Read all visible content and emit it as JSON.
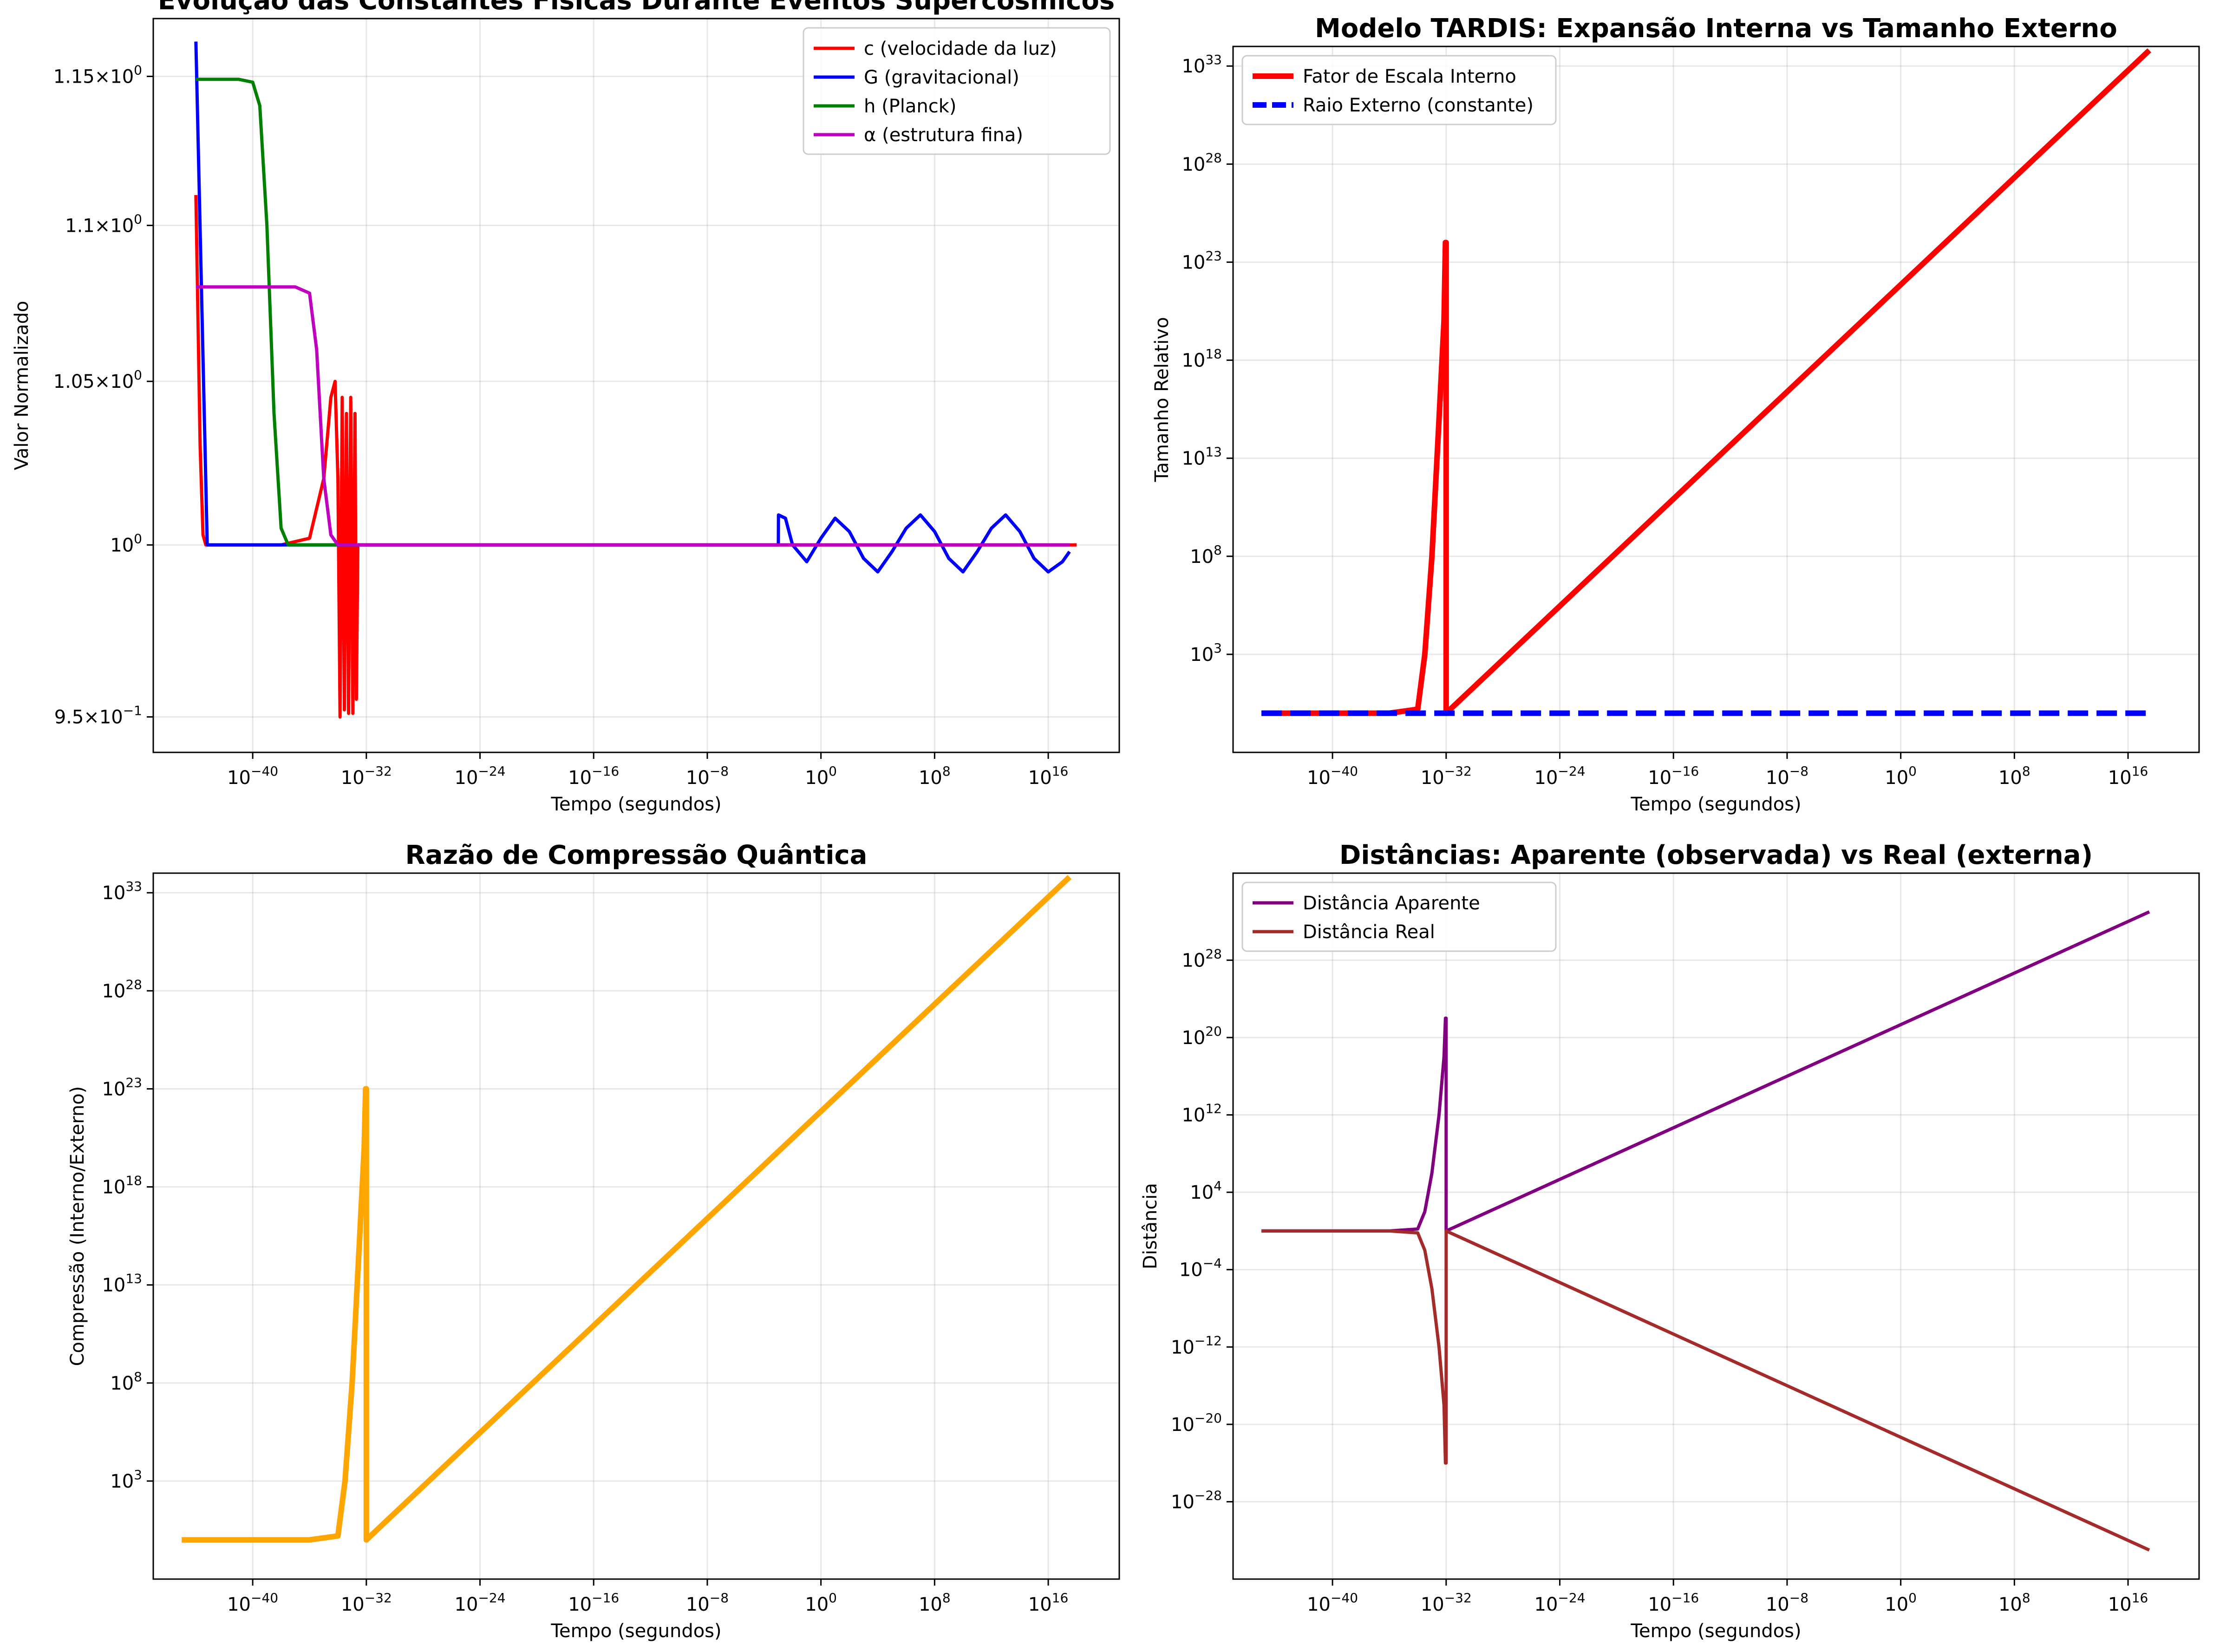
{
  "chart_data": [
    {
      "type": "line",
      "title": "Evolução das Constantes Físicas Durante Eventos Supercosmicos",
      "xlabel": "Tempo (segundos)",
      "ylabel": "Valor Normalizado",
      "xscale": "log",
      "yscale": "log",
      "xlim_exp": [
        -47,
        21
      ],
      "ylim": [
        0.94,
        1.17
      ],
      "xticks": [
        "10^{-40}",
        "10^{-32}",
        "10^{-24}",
        "10^{-16}",
        "10^{-8}",
        "10^{0}",
        "10^{8}",
        "10^{16}"
      ],
      "yticks": [
        {
          "value": 0.95,
          "mant": "9.5",
          "exp": "−1"
        },
        {
          "value": 1.0,
          "mant": "",
          "exp": "0"
        },
        {
          "value": 1.05,
          "mant": "1.05",
          "exp": "0"
        },
        {
          "value": 1.1,
          "mant": "1.1",
          "exp": "0"
        },
        {
          "value": 1.15,
          "mant": "1.15",
          "exp": "0"
        }
      ],
      "grid": true,
      "legend": "top-right",
      "series": [
        {
          "name": "c (velocidade da luz)",
          "color": "#ff0000",
          "lw": 7,
          "points": [
            [
              -44,
              1.11
            ],
            [
              -43.7,
              1.03
            ],
            [
              -43.5,
              1.003
            ],
            [
              -43.3,
              1.0
            ],
            [
              -38,
              1.0
            ],
            [
              -36,
              1.002
            ],
            [
              -35,
              1.02
            ],
            [
              -34.5,
              1.045
            ],
            [
              -34.2,
              1.05
            ],
            [
              -34,
              1.02
            ],
            [
              -33.85,
              0.95
            ],
            [
              -33.7,
              1.045
            ],
            [
              -33.55,
              0.952
            ],
            [
              -33.4,
              1.04
            ],
            [
              -33.25,
              0.951
            ],
            [
              -33.1,
              1.045
            ],
            [
              -32.95,
              0.951
            ],
            [
              -32.8,
              1.04
            ],
            [
              -32.7,
              0.955
            ],
            [
              -32.6,
              1.0
            ],
            [
              -31,
              1.0
            ],
            [
              18,
              1.0
            ]
          ]
        },
        {
          "name": "G (gravitacional)",
          "color": "#0000ff",
          "lw": 7,
          "points": [
            [
              -44,
              1.162
            ],
            [
              -43.2,
              1.0
            ],
            [
              -3,
              1.0
            ],
            [
              -2.99,
              1.009
            ],
            [
              -2.5,
              1.008
            ],
            [
              -2,
              1.0
            ],
            [
              -1,
              0.995
            ],
            [
              0,
              1.002
            ],
            [
              1,
              1.008
            ],
            [
              2,
              1.004
            ],
            [
              3,
              0.996
            ],
            [
              4,
              0.992
            ],
            [
              5,
              0.998
            ],
            [
              6,
              1.005
            ],
            [
              7,
              1.009
            ],
            [
              8,
              1.004
            ],
            [
              9,
              0.996
            ],
            [
              10,
              0.992
            ],
            [
              11,
              0.998
            ],
            [
              12,
              1.005
            ],
            [
              13,
              1.009
            ],
            [
              14,
              1.004
            ],
            [
              15,
              0.996
            ],
            [
              16,
              0.992
            ],
            [
              17,
              0.995
            ],
            [
              17.5,
              0.998
            ]
          ]
        },
        {
          "name": "h (Planck)",
          "color": "#008000",
          "lw": 7,
          "points": [
            [
              -44,
              1.149
            ],
            [
              -41,
              1.149
            ],
            [
              -40,
              1.148
            ],
            [
              -39.5,
              1.14
            ],
            [
              -39,
              1.1
            ],
            [
              -38.5,
              1.04
            ],
            [
              -38,
              1.005
            ],
            [
              -37.5,
              1.0
            ],
            [
              -32.5,
              1.0
            ]
          ]
        },
        {
          "name": "α (estrutura fina)",
          "color": "#bf00bf",
          "lw": 7,
          "points": [
            [
              -44,
              1.08
            ],
            [
              -37,
              1.08
            ],
            [
              -36,
              1.078
            ],
            [
              -35.5,
              1.06
            ],
            [
              -35,
              1.02
            ],
            [
              -34.5,
              1.003
            ],
            [
              -34,
              1.0
            ],
            [
              17.5,
              1.0
            ]
          ]
        }
      ]
    },
    {
      "type": "line",
      "title": "Modelo TARDIS: Expansão Interna vs Tamanho Externo",
      "xlabel": "Tempo (segundos)",
      "ylabel": "Tamanho Relativo",
      "xscale": "log",
      "yscale": "log",
      "xlim_exp": [
        -47,
        21
      ],
      "ylim_exp": [
        -2,
        34
      ],
      "xticks": [
        "10^{-40}",
        "10^{-32}",
        "10^{-24}",
        "10^{-16}",
        "10^{-8}",
        "10^{0}",
        "10^{8}",
        "10^{16}"
      ],
      "yticks": [
        "10^{3}",
        "10^{8}",
        "10^{13}",
        "10^{18}",
        "10^{23}",
        "10^{28}",
        "10^{33}"
      ],
      "grid": true,
      "legend": "top-left",
      "series": [
        {
          "name": "Fator de Escala Interno",
          "color": "#ff0000",
          "lw": 12,
          "points": [
            [
              -45,
              0
            ],
            [
              -36,
              0
            ],
            [
              -34,
              0.2
            ],
            [
              -33.5,
              3
            ],
            [
              -33,
              8
            ],
            [
              -32.5,
              15
            ],
            [
              -32.15,
              20
            ],
            [
              -32.05,
              24
            ],
            [
              -32,
              24
            ],
            [
              -32,
              0
            ],
            [
              17.5,
              33.8
            ]
          ]
        },
        {
          "name": "Raio Externo (constante)",
          "color": "#0000ff",
          "lw": 12,
          "dash": true,
          "points": [
            [
              -45,
              0
            ],
            [
              17.5,
              0
            ]
          ]
        }
      ]
    },
    {
      "type": "line",
      "title": "Razão de Compressão Quântica",
      "xlabel": "Tempo (segundos)",
      "ylabel": "Compressão (Interno/Externo)",
      "xscale": "log",
      "yscale": "log",
      "xlim_exp": [
        -47,
        21
      ],
      "ylim_exp": [
        -2,
        34
      ],
      "xticks": [
        "10^{-40}",
        "10^{-32}",
        "10^{-24}",
        "10^{-16}",
        "10^{-8}",
        "10^{0}",
        "10^{8}",
        "10^{16}"
      ],
      "yticks": [
        "10^{3}",
        "10^{8}",
        "10^{13}",
        "10^{18}",
        "10^{23}",
        "10^{28}",
        "10^{33}"
      ],
      "grid": true,
      "legend": "none",
      "series": [
        {
          "name": "",
          "color": "#ffa500",
          "lw": 12,
          "points": [
            [
              -45,
              0
            ],
            [
              -36,
              0
            ],
            [
              -34,
              0.2
            ],
            [
              -33.5,
              3
            ],
            [
              -33,
              8
            ],
            [
              -32.5,
              15
            ],
            [
              -32.15,
              20
            ],
            [
              -32.05,
              23
            ],
            [
              -32,
              23
            ],
            [
              -32,
              0
            ],
            [
              17.5,
              33.8
            ]
          ]
        }
      ]
    },
    {
      "type": "line",
      "title": "Distâncias: Aparente (observada) vs Real (externa)",
      "xlabel": "Tempo (segundos)",
      "ylabel": "Distância",
      "xscale": "log",
      "yscale": "log",
      "xlim_exp": [
        -47,
        21
      ],
      "ylim_exp": [
        -36,
        37
      ],
      "xticks": [
        "10^{-40}",
        "10^{-32}",
        "10^{-24}",
        "10^{-16}",
        "10^{-8}",
        "10^{0}",
        "10^{8}",
        "10^{16}"
      ],
      "yticks": [
        "10^{-28}",
        "10^{-20}",
        "10^{-12}",
        "10^{-4}",
        "10^{4}",
        "10^{12}",
        "10^{20}",
        "10^{28}"
      ],
      "grid": true,
      "legend": "top-left",
      "series": [
        {
          "name": "Distância Aparente",
          "color": "#800080",
          "lw": 7,
          "points": [
            [
              -45,
              0
            ],
            [
              -36,
              0
            ],
            [
              -34,
              0.2
            ],
            [
              -33.5,
              2
            ],
            [
              -33,
              6
            ],
            [
              -32.5,
              12
            ],
            [
              -32.15,
              18
            ],
            [
              -32.05,
              22
            ],
            [
              -32,
              22
            ],
            [
              -32,
              0
            ],
            [
              17.5,
              33
            ]
          ]
        },
        {
          "name": "Distância Real",
          "color": "#a52a2a",
          "lw": 7,
          "points": [
            [
              -45,
              0
            ],
            [
              -36,
              0
            ],
            [
              -34,
              -0.2
            ],
            [
              -33.5,
              -2
            ],
            [
              -33,
              -6
            ],
            [
              -32.5,
              -12
            ],
            [
              -32.15,
              -18
            ],
            [
              -32.05,
              -24
            ],
            [
              -32,
              -24
            ],
            [
              -32,
              0
            ],
            [
              17.5,
              -33
            ]
          ]
        }
      ]
    }
  ]
}
